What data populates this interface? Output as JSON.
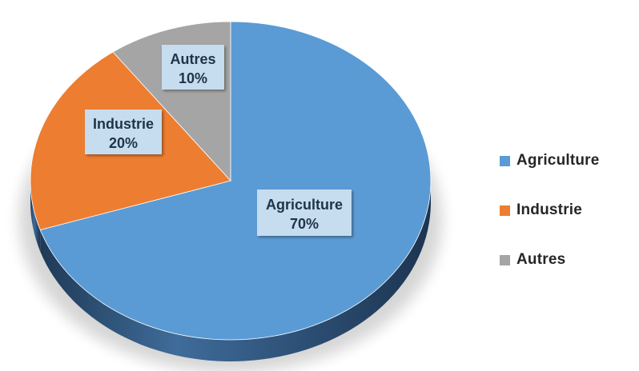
{
  "chart_data": {
    "type": "pie",
    "title": "",
    "slices": [
      {
        "label": "Agriculture",
        "value": 70,
        "display": "70%",
        "color": "#5b9bd5"
      },
      {
        "label": "Industrie",
        "value": 20,
        "display": "20%",
        "color": "#ed7d31"
      },
      {
        "label": "Autres",
        "value": 10,
        "display": "10%",
        "color": "#a5a5a5"
      }
    ],
    "legend_position": "right",
    "style": "3d"
  }
}
